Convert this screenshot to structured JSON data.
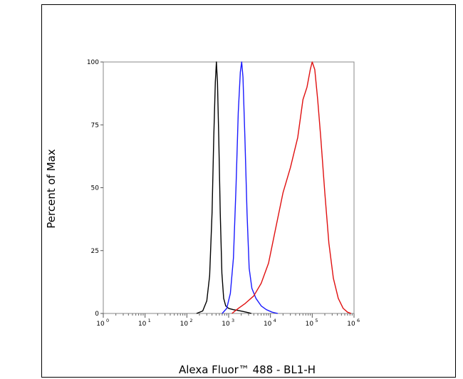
{
  "chart_data": {
    "type": "line",
    "xlabel": "Alexa Fluor™ 488 - BL1-H",
    "ylabel": "Percent of Max",
    "x_scale": "log",
    "xlim": [
      1,
      1000000
    ],
    "ylim": [
      0,
      100
    ],
    "y_ticks": [
      "0",
      "25",
      "50",
      "75",
      "100"
    ],
    "x_ticks": [
      {
        "base": "10",
        "exp": "0"
      },
      {
        "base": "10",
        "exp": "1"
      },
      {
        "base": "10",
        "exp": "2"
      },
      {
        "base": "10",
        "exp": "3"
      },
      {
        "base": "10",
        "exp": "4"
      },
      {
        "base": "10",
        "exp": "5"
      },
      {
        "base": "10",
        "exp": "6"
      }
    ],
    "grid": false,
    "series": [
      {
        "color": "#000000",
        "points": [
          [
            170,
            0
          ],
          [
            240,
            1
          ],
          [
            300,
            5
          ],
          [
            350,
            15
          ],
          [
            400,
            40
          ],
          [
            440,
            70
          ],
          [
            480,
            92
          ],
          [
            510,
            100
          ],
          [
            540,
            92
          ],
          [
            580,
            70
          ],
          [
            630,
            40
          ],
          [
            690,
            16
          ],
          [
            760,
            6
          ],
          [
            850,
            3
          ],
          [
            1000,
            2
          ],
          [
            1300,
            1.5
          ],
          [
            1700,
            1.2
          ],
          [
            2200,
            0.8
          ],
          [
            3000,
            0.3
          ],
          [
            3500,
            0
          ]
        ]
      },
      {
        "color": "#1a1aff",
        "points": [
          [
            700,
            0
          ],
          [
            900,
            2
          ],
          [
            1100,
            8
          ],
          [
            1300,
            22
          ],
          [
            1500,
            50
          ],
          [
            1700,
            80
          ],
          [
            1900,
            96
          ],
          [
            2050,
            100
          ],
          [
            2200,
            94
          ],
          [
            2450,
            70
          ],
          [
            2750,
            40
          ],
          [
            3100,
            18
          ],
          [
            3600,
            10
          ],
          [
            4500,
            6
          ],
          [
            6000,
            3
          ],
          [
            8000,
            1.5
          ],
          [
            11000,
            0.5
          ],
          [
            15000,
            0
          ]
        ]
      },
      {
        "color": "#e01010",
        "points": [
          [
            1200,
            0
          ],
          [
            1700,
            2
          ],
          [
            2500,
            4
          ],
          [
            4000,
            7
          ],
          [
            6000,
            12
          ],
          [
            9000,
            20
          ],
          [
            13000,
            33
          ],
          [
            20000,
            48
          ],
          [
            30000,
            58
          ],
          [
            45000,
            70
          ],
          [
            60000,
            85
          ],
          [
            75000,
            90
          ],
          [
            90000,
            97
          ],
          [
            100000,
            100
          ],
          [
            115000,
            97
          ],
          [
            135000,
            85
          ],
          [
            160000,
            70
          ],
          [
            200000,
            48
          ],
          [
            250000,
            28
          ],
          [
            320000,
            14
          ],
          [
            420000,
            6
          ],
          [
            550000,
            2
          ],
          [
            700000,
            0.5
          ],
          [
            850000,
            0
          ]
        ]
      }
    ]
  }
}
